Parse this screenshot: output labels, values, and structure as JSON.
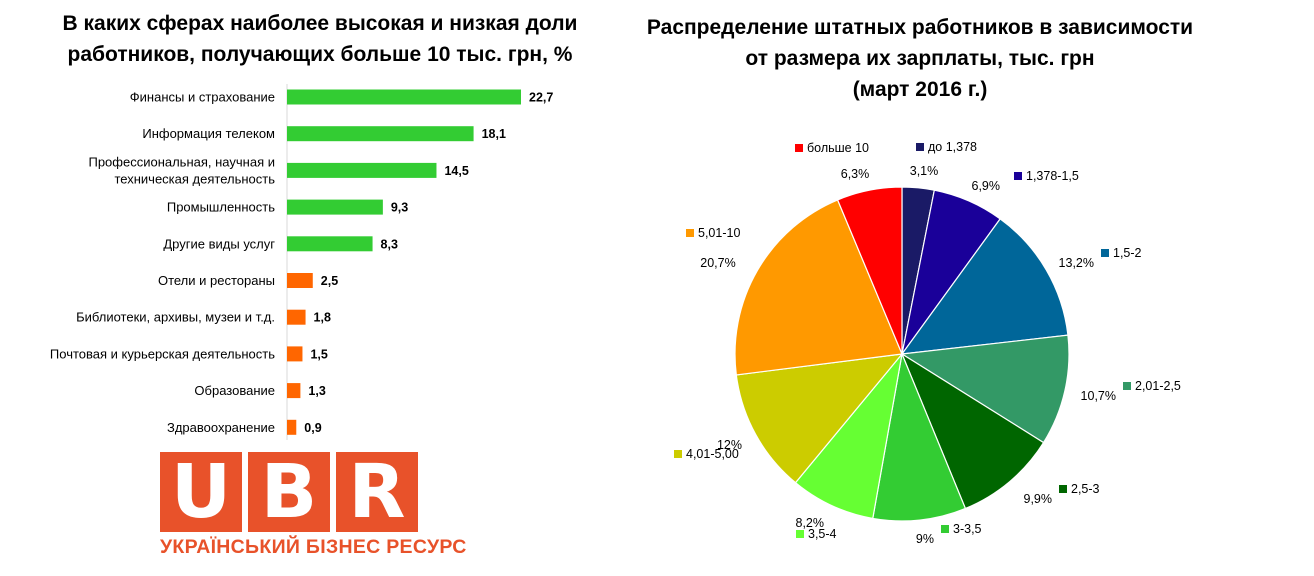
{
  "chart_data": [
    {
      "type": "bar",
      "orientation": "horizontal",
      "title": "В каких сферах наиболее высокая и низкая доли\nработников, получающих больше 10 тыс. грн, %",
      "categories": [
        "Финансы и страхование",
        "Информация телеком",
        "Профессиональная, научная и\nтехническая   деятельность",
        "Промышленность",
        "Другие виды услуг",
        "Отели и рестораны",
        "Библиотеки, архивы, музеи и т.д.",
        "Почтовая и  курьерская деятельность",
        "Образование",
        "Здравоохранение"
      ],
      "values": [
        22.7,
        18.1,
        14.5,
        9.3,
        8.3,
        2.5,
        1.8,
        1.5,
        1.3,
        0.9
      ],
      "value_labels": [
        "22,7",
        "18,1",
        "14,5",
        "9,3",
        "8,3",
        "2,5",
        "1,8",
        "1,5",
        "1,3",
        "0,9"
      ],
      "colors": [
        "#33cc33",
        "#33cc33",
        "#33cc33",
        "#33cc33",
        "#33cc33",
        "#ff6600",
        "#ff6600",
        "#ff6600",
        "#ff6600",
        "#ff6600"
      ],
      "xlim": [
        0,
        25
      ],
      "grid": false
    },
    {
      "type": "pie",
      "title": "Распределение штатных работников в зависимости\nот размера их зарплаты, тыс. грн\n(март 2016 г.)",
      "slices": [
        {
          "name": "до 1,378",
          "value": 3.1,
          "label": "3,1%",
          "color": "#1a1a66"
        },
        {
          "name": "1,378-1,5",
          "value": 6.9,
          "label": "6,9%",
          "color": "#1a0099"
        },
        {
          "name": "1,5-2",
          "value": 13.2,
          "label": "13,2%",
          "color": "#006699"
        },
        {
          "name": "2,01-2,5",
          "value": 10.7,
          "label": "10,7%",
          "color": "#339966"
        },
        {
          "name": "2,5-3",
          "value": 9.9,
          "label": "9,9%",
          "color": "#006600"
        },
        {
          "name": "3-3,5",
          "value": 9,
          "label": "9%",
          "color": "#33cc33"
        },
        {
          "name": "3,5-4",
          "value": 8.2,
          "label": "8,2%",
          "color": "#66ff33"
        },
        {
          "name": "4,01-5,00",
          "value": 12,
          "label": "12%",
          "color": "#cccc00"
        },
        {
          "name": "5,01-10",
          "value": 20.7,
          "label": "20,7%",
          "color": "#ff9900"
        },
        {
          "name": "больше 10",
          "value": 6.3,
          "label": "6,3%",
          "color": "#ff0000"
        }
      ],
      "start": "12 o'clock",
      "direction": "clockwise",
      "legend": "labels next to slices"
    }
  ],
  "logo": {
    "letters": [
      "U",
      "B",
      "R"
    ],
    "tagline": "УКРАЇНСЬКИЙ БІЗНЕС РЕСУРС",
    "color": "#e8522a"
  }
}
